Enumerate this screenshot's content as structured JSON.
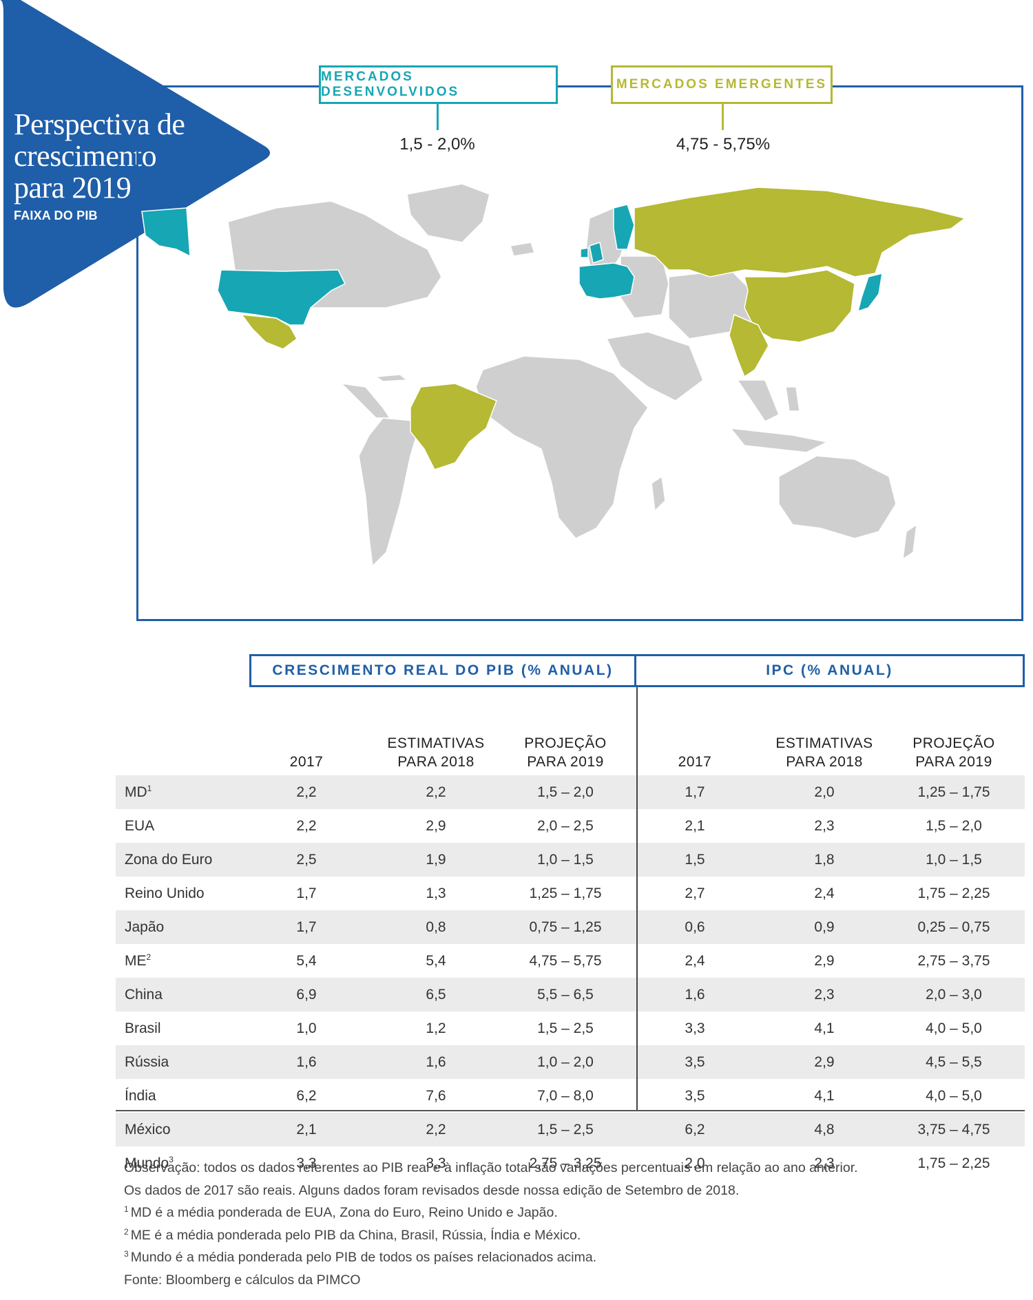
{
  "title": {
    "lines": [
      "Perspectiva de",
      "crescimento",
      "para 2019"
    ],
    "subtitle": "FAIXA DO PIB"
  },
  "markets": {
    "developed": {
      "label": "MERCADOS DESENVOLVIDOS",
      "range": "1,5 - 2,0%",
      "color": "#17a6b3"
    },
    "emerging": {
      "label": "MERCADOS EMERGENTES",
      "range": "4,75 - 5,75%",
      "color": "#b5b933"
    }
  },
  "colors": {
    "brand_blue": "#1f5ea8",
    "land_gray": "#cfcfcf",
    "row_shade": "#ebebec"
  },
  "table": {
    "group_headers": [
      "CRESCIMENTO REAL DO PIB (% ANUAL)",
      "IPC (% ANUAL)"
    ],
    "subheaders": [
      {
        "line1": "",
        "line2": "2017"
      },
      {
        "line1": "ESTIMATIVAS",
        "line2": "PARA 2018"
      },
      {
        "line1": "PROJEÇÃO",
        "line2": "PARA 2019"
      },
      {
        "line1": "",
        "line2": "2017"
      },
      {
        "line1": "ESTIMATIVAS",
        "line2": "PARA 2018"
      },
      {
        "line1": "PROJEÇÃO",
        "line2": "PARA 2019"
      }
    ],
    "rows": [
      {
        "name": "MD",
        "sup": "1",
        "values": [
          "2,2",
          "2,2",
          "1,5 – 2,0",
          "1,7",
          "2,0",
          "1,25 – 1,75"
        ]
      },
      {
        "name": "EUA",
        "sup": "",
        "values": [
          "2,2",
          "2,9",
          "2,0 – 2,5",
          "2,1",
          "2,3",
          "1,5 – 2,0"
        ]
      },
      {
        "name": "Zona do Euro",
        "sup": "",
        "values": [
          "2,5",
          "1,9",
          "1,0 – 1,5",
          "1,5",
          "1,8",
          "1,0 – 1,5"
        ]
      },
      {
        "name": "Reino Unido",
        "sup": "",
        "values": [
          "1,7",
          "1,3",
          "1,25 – 1,75",
          "2,7",
          "2,4",
          "1,75 – 2,25"
        ]
      },
      {
        "name": "Japão",
        "sup": "",
        "values": [
          "1,7",
          "0,8",
          "0,75 – 1,25",
          "0,6",
          "0,9",
          "0,25 – 0,75"
        ]
      },
      {
        "name": "ME",
        "sup": "2",
        "values": [
          "5,4",
          "5,4",
          "4,75 – 5,75",
          "2,4",
          "2,9",
          "2,75 – 3,75"
        ]
      },
      {
        "name": "China",
        "sup": "",
        "values": [
          "6,9",
          "6,5",
          "5,5 – 6,5",
          "1,6",
          "2,3",
          "2,0 – 3,0"
        ]
      },
      {
        "name": "Brasil",
        "sup": "",
        "values": [
          "1,0",
          "1,2",
          "1,5 – 2,5",
          "3,3",
          "4,1",
          "4,0 – 5,0"
        ]
      },
      {
        "name": "Rússia",
        "sup": "",
        "values": [
          "1,6",
          "1,6",
          "1,0 – 2,0",
          "3,5",
          "2,9",
          "4,5 – 5,5"
        ]
      },
      {
        "name": "Índia",
        "sup": "",
        "values": [
          "6,2",
          "7,6",
          "7,0 – 8,0",
          "3,5",
          "4,1",
          "4,0 – 5,0"
        ]
      },
      {
        "name": "México",
        "sup": "",
        "values": [
          "2,1",
          "2,2",
          "1,5 – 2,5",
          "6,2",
          "4,8",
          "3,75 – 4,75"
        ]
      },
      {
        "name": "Mundo",
        "sup": "3",
        "values": [
          "3,3",
          "3,3",
          "2,75 – 3,25",
          "2,0",
          "2,3",
          "1,75 – 2,25"
        ]
      }
    ]
  },
  "notes": [
    {
      "sup": "",
      "text": "Observação: todos os dados referentes ao PIB real e à inflação total são variações percentuais em relação ao ano anterior."
    },
    {
      "sup": "",
      "text": "Os dados de 2017 são reais. Alguns dados foram revisados desde nossa edição de Setembro de 2018."
    },
    {
      "sup": "1",
      "text": "MD é a média ponderada de EUA, Zona do Euro, Reino Unido e Japão."
    },
    {
      "sup": "2",
      "text": "ME é a média ponderada pelo PIB da China, Brasil, Rússia, Índia e México."
    },
    {
      "sup": "3",
      "text": "Mundo é a média ponderada pelo PIB de todos os países relacionados acima."
    },
    {
      "sup": "",
      "text": "Fonte: Bloomberg e cálculos da PIMCO"
    }
  ]
}
